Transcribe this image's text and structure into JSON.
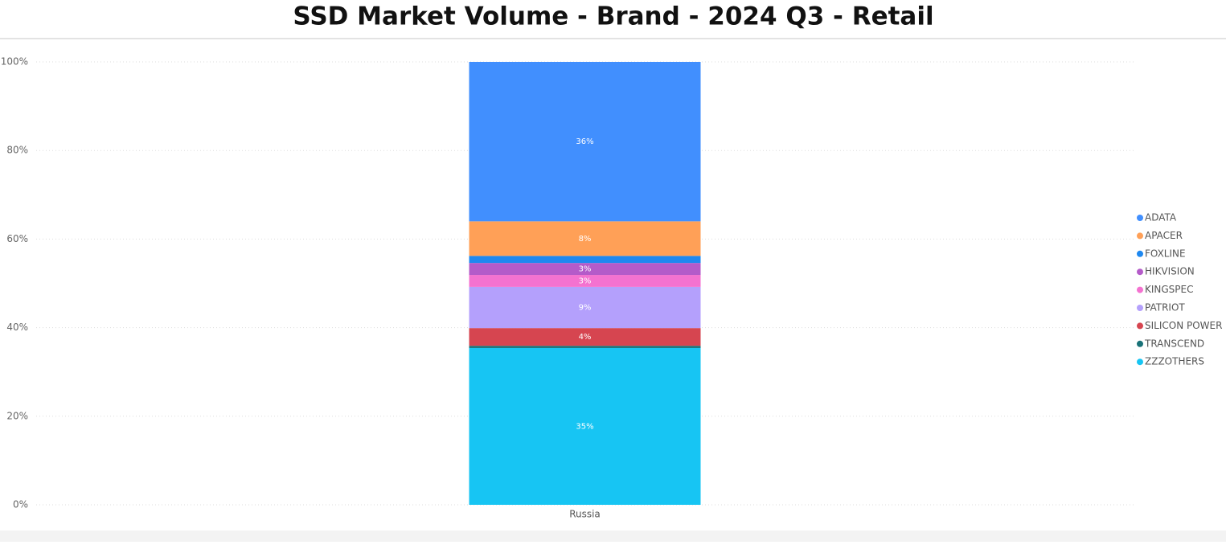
{
  "chart_data": {
    "type": "stacked_bar",
    "title": "SSD Market Volume - Brand - 2024 Q3 - Retail",
    "categories": [
      "Russia"
    ],
    "series": [
      {
        "name": "ZZZOTHERS",
        "color": "#17c5f3",
        "values": [
          35.4
        ],
        "value_labels": [
          "35%"
        ]
      },
      {
        "name": "TRANSCEND",
        "color": "#197278",
        "values": [
          0.5
        ],
        "value_labels": [
          null
        ]
      },
      {
        "name": "SILICON POWER",
        "color": "#d64550",
        "values": [
          4.0
        ],
        "value_labels": [
          "4%"
        ]
      },
      {
        "name": "PATRIOT",
        "color": "#b4a0fc",
        "values": [
          9.3
        ],
        "value_labels": [
          "9%"
        ]
      },
      {
        "name": "KINGSPEC",
        "color": "#f472d0",
        "values": [
          2.7
        ],
        "value_labels": [
          "3%"
        ]
      },
      {
        "name": "HIKVISION",
        "color": "#b45bc9",
        "values": [
          2.7
        ],
        "value_labels": [
          "3%"
        ]
      },
      {
        "name": "FOXLINE",
        "color": "#1e88f0",
        "values": [
          1.6
        ],
        "value_labels": [
          null
        ]
      },
      {
        "name": "APACER",
        "color": "#ffa057",
        "values": [
          7.8
        ],
        "value_labels": [
          "8%"
        ]
      },
      {
        "name": "ADATA",
        "color": "#418ffe",
        "values": [
          36.0
        ],
        "value_labels": [
          "36%"
        ]
      }
    ],
    "ylim": [
      0,
      100
    ],
    "yticks": [
      {
        "value": 0,
        "label": "0%"
      },
      {
        "value": 20,
        "label": "20%"
      },
      {
        "value": 40,
        "label": "40%"
      },
      {
        "value": 60,
        "label": "60%"
      },
      {
        "value": 80,
        "label": "80%"
      },
      {
        "value": 100,
        "label": "100%"
      }
    ],
    "grid": true,
    "legend": "right"
  }
}
